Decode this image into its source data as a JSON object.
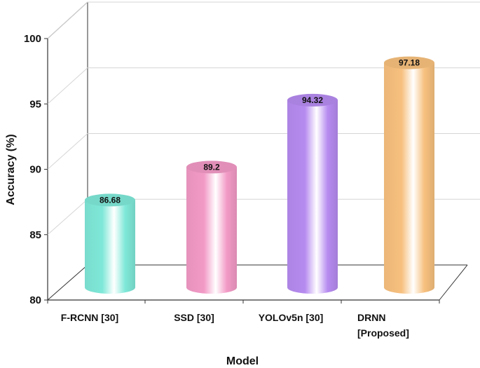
{
  "chart_data": {
    "type": "bar",
    "style": "3d-cylinder",
    "categories": [
      [
        "F-RCNN [30]"
      ],
      [
        "SSD  [30]"
      ],
      [
        "YOLOv5n  [30]"
      ],
      [
        "DRNN",
        "[Proposed]"
      ]
    ],
    "values": [
      86.68,
      89.2,
      94.32,
      97.18
    ],
    "data_labels": [
      "86.68",
      "89.2",
      "94.32",
      "97.18"
    ],
    "colors": [
      "#7fe8d8",
      "#f29ac6",
      "#b68bf0",
      "#f7c07e"
    ],
    "xlabel": "Model",
    "ylabel": "Accuracy (%)",
    "ylim": [
      80,
      100
    ],
    "yticks": [
      80,
      85,
      90,
      95,
      100
    ],
    "grid": true
  }
}
